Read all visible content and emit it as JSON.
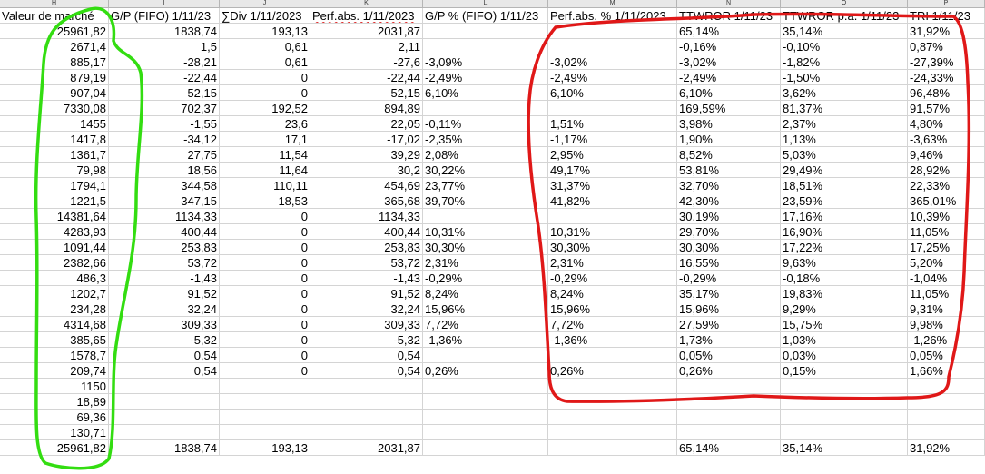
{
  "column_letters": [
    "H",
    "I",
    "J",
    "K",
    "L",
    "M",
    "N",
    "O",
    "P"
  ],
  "header": [
    "Valeur de marché",
    "G/P (FIFO) 1/11/23",
    "∑Div 1/11/2023",
    "Perf.abs. 1/11/2023",
    "G/P % (FIFO) 1/11/23",
    "Perf.abs. % 1/11/2023",
    "TTWROR 1/11/23",
    "TTWROR p.a. 1/11/23",
    "TRI 1/11/23"
  ],
  "rows": [
    [
      "25961,82",
      "1838,74",
      "193,13",
      "2031,87",
      "",
      "",
      "65,14%",
      "35,14%",
      "31,92%"
    ],
    [
      "2671,4",
      "1,5",
      "0,61",
      "2,11",
      "",
      "",
      "-0,16%",
      "-0,10%",
      "0,87%"
    ],
    [
      "885,17",
      "-28,21",
      "0,61",
      "-27,6",
      "-3,09%",
      "-3,02%",
      "-3,02%",
      "-1,82%",
      "-27,39%"
    ],
    [
      "879,19",
      "-22,44",
      "0",
      "-22,44",
      "-2,49%",
      "-2,49%",
      "-2,49%",
      "-1,50%",
      "-24,33%"
    ],
    [
      "907,04",
      "52,15",
      "0",
      "52,15",
      "6,10%",
      "6,10%",
      "6,10%",
      "3,62%",
      "96,48%"
    ],
    [
      "7330,08",
      "702,37",
      "192,52",
      "894,89",
      "",
      "",
      "169,59%",
      "81,37%",
      "91,57%"
    ],
    [
      "1455",
      "-1,55",
      "23,6",
      "22,05",
      "-0,11%",
      "1,51%",
      "3,98%",
      "2,37%",
      "4,80%"
    ],
    [
      "1417,8",
      "-34,12",
      "17,1",
      "-17,02",
      "-2,35%",
      "-1,17%",
      "1,90%",
      "1,13%",
      "-3,63%"
    ],
    [
      "1361,7",
      "27,75",
      "11,54",
      "39,29",
      "2,08%",
      "2,95%",
      "8,52%",
      "5,03%",
      "9,46%"
    ],
    [
      "79,98",
      "18,56",
      "11,64",
      "30,2",
      "30,22%",
      "49,17%",
      "53,81%",
      "29,49%",
      "28,92%"
    ],
    [
      "1794,1",
      "344,58",
      "110,11",
      "454,69",
      "23,77%",
      "31,37%",
      "32,70%",
      "18,51%",
      "22,33%"
    ],
    [
      "1221,5",
      "347,15",
      "18,53",
      "365,68",
      "39,70%",
      "41,82%",
      "42,30%",
      "23,59%",
      "365,01%"
    ],
    [
      "14381,64",
      "1134,33",
      "0",
      "1134,33",
      "",
      "",
      "30,19%",
      "17,16%",
      "10,39%"
    ],
    [
      "4283,93",
      "400,44",
      "0",
      "400,44",
      "10,31%",
      "10,31%",
      "29,70%",
      "16,90%",
      "11,05%"
    ],
    [
      "1091,44",
      "253,83",
      "0",
      "253,83",
      "30,30%",
      "30,30%",
      "30,30%",
      "17,22%",
      "17,25%"
    ],
    [
      "2382,66",
      "53,72",
      "0",
      "53,72",
      "2,31%",
      "2,31%",
      "16,55%",
      "9,63%",
      "5,20%"
    ],
    [
      "486,3",
      "-1,43",
      "0",
      "-1,43",
      "-0,29%",
      "-0,29%",
      "-0,29%",
      "-0,18%",
      "-1,04%"
    ],
    [
      "1202,7",
      "91,52",
      "0",
      "91,52",
      "8,24%",
      "8,24%",
      "35,17%",
      "19,83%",
      "11,05%"
    ],
    [
      "234,28",
      "32,24",
      "0",
      "32,24",
      "15,96%",
      "15,96%",
      "15,96%",
      "9,29%",
      "9,31%"
    ],
    [
      "4314,68",
      "309,33",
      "0",
      "309,33",
      "7,72%",
      "7,72%",
      "27,59%",
      "15,75%",
      "9,98%"
    ],
    [
      "385,65",
      "-5,32",
      "0",
      "-5,32",
      "-1,36%",
      "-1,36%",
      "1,73%",
      "1,03%",
      "-1,26%"
    ],
    [
      "1578,7",
      "0,54",
      "0",
      "0,54",
      "",
      "",
      "0,05%",
      "0,03%",
      "0,05%"
    ],
    [
      "209,74",
      "0,54",
      "0",
      "0,54",
      "0,26%",
      "0,26%",
      "0,26%",
      "0,15%",
      "1,66%"
    ],
    [
      "1150",
      "",
      "",
      "",
      "",
      "",
      "",
      "",
      ""
    ],
    [
      "18,89",
      "",
      "",
      "",
      "",
      "",
      "",
      "",
      ""
    ],
    [
      "69,36",
      "",
      "",
      "",
      "",
      "",
      "",
      "",
      ""
    ],
    [
      "130,71",
      "",
      "",
      "",
      "",
      "",
      "",
      "",
      ""
    ],
    [
      "25961,82",
      "1838,74",
      "193,13",
      "2031,87",
      "",
      "",
      "65,14%",
      "35,14%",
      "31,92%"
    ]
  ],
  "colors": {
    "green_marker": "#33dd11",
    "red_marker": "#e01818"
  }
}
